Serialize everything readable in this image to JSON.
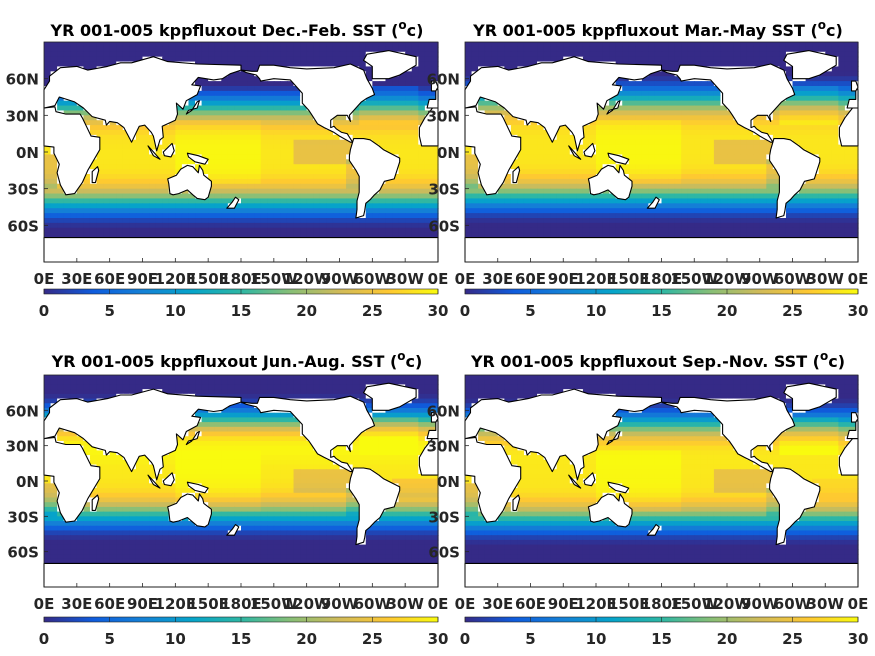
{
  "figure": {
    "colormap": "parula",
    "land_color": "#ffffff",
    "coast_color": "#000000"
  },
  "chart_data": [
    {
      "type": "heatmap",
      "title": "YR 001-005 kppfluxout Dec.-Feb. SST (",
      "unit": "°c",
      "unit_base": "o",
      "unit_letter": "c",
      "title_close": ")",
      "season": "DJF",
      "xticklabels": [
        "0E",
        "30E",
        "60E",
        "90E",
        "120E",
        "150E",
        "180E",
        "150W",
        "120W",
        "90W",
        "60W",
        "30W",
        "0E"
      ],
      "yticklabels": [
        "60N",
        "30N",
        "0N",
        "30S",
        "60S"
      ],
      "yticks": [
        60,
        30,
        0,
        -30,
        -60
      ],
      "xlim": [
        0,
        360
      ],
      "ylim": [
        -90,
        90
      ],
      "colorbar": {
        "ticks": [
          0,
          5,
          10,
          15,
          20,
          25,
          30
        ],
        "ticklabels": [
          "0",
          "5",
          "10",
          "15",
          "20",
          "25",
          "30"
        ],
        "range": [
          0,
          30
        ]
      }
    },
    {
      "type": "heatmap",
      "title": "YR 001-005 kppfluxout Mar.-May SST (",
      "unit": "°c",
      "unit_base": "o",
      "unit_letter": "c",
      "title_close": ")",
      "season": "MAM",
      "xticklabels": [
        "0E",
        "30E",
        "60E",
        "90E",
        "120E",
        "150E",
        "180E",
        "150W",
        "120W",
        "90W",
        "60W",
        "30W",
        "0E"
      ],
      "yticklabels": [
        "60N",
        "30N",
        "0N",
        "30S",
        "60S"
      ],
      "yticks": [
        60,
        30,
        0,
        -30,
        -60
      ],
      "xlim": [
        0,
        360
      ],
      "ylim": [
        -90,
        90
      ],
      "colorbar": {
        "ticks": [
          0,
          5,
          10,
          15,
          20,
          25,
          30
        ],
        "ticklabels": [
          "0",
          "5",
          "10",
          "15",
          "20",
          "25",
          "30"
        ],
        "range": [
          0,
          30
        ]
      }
    },
    {
      "type": "heatmap",
      "title": "YR 001-005 kppfluxout Jun.-Aug. SST (",
      "unit": "°c",
      "unit_base": "o",
      "unit_letter": "c",
      "title_close": ")",
      "season": "JJA",
      "xticklabels": [
        "0E",
        "30E",
        "60E",
        "90E",
        "120E",
        "150E",
        "180E",
        "150W",
        "120W",
        "90W",
        "60W",
        "30W",
        "0E"
      ],
      "yticklabels": [
        "60N",
        "30N",
        "0N",
        "30S",
        "60S"
      ],
      "yticks": [
        60,
        30,
        0,
        -30,
        -60
      ],
      "xlim": [
        0,
        360
      ],
      "ylim": [
        -90,
        90
      ],
      "colorbar": {
        "ticks": [
          0,
          5,
          10,
          15,
          20,
          25,
          30
        ],
        "ticklabels": [
          "0",
          "5",
          "10",
          "15",
          "20",
          "25",
          "30"
        ],
        "range": [
          0,
          30
        ]
      }
    },
    {
      "type": "heatmap",
      "title": "YR 001-005 kppfluxout Sep.-Nov. SST (",
      "unit": "°c",
      "unit_base": "o",
      "unit_letter": "c",
      "title_close": ")",
      "season": "SON",
      "xticklabels": [
        "0E",
        "30E",
        "60E",
        "90E",
        "120E",
        "150E",
        "180E",
        "150W",
        "120W",
        "90W",
        "60W",
        "30W",
        "0E"
      ],
      "yticklabels": [
        "60N",
        "30N",
        "0N",
        "30S",
        "60S"
      ],
      "yticks": [
        60,
        30,
        0,
        -30,
        -60
      ],
      "xlim": [
        0,
        360
      ],
      "ylim": [
        -90,
        90
      ],
      "colorbar": {
        "ticks": [
          0,
          5,
          10,
          15,
          20,
          25,
          30
        ],
        "ticklabels": [
          "0",
          "5",
          "10",
          "15",
          "20",
          "25",
          "30"
        ],
        "range": [
          0,
          30
        ]
      }
    }
  ]
}
